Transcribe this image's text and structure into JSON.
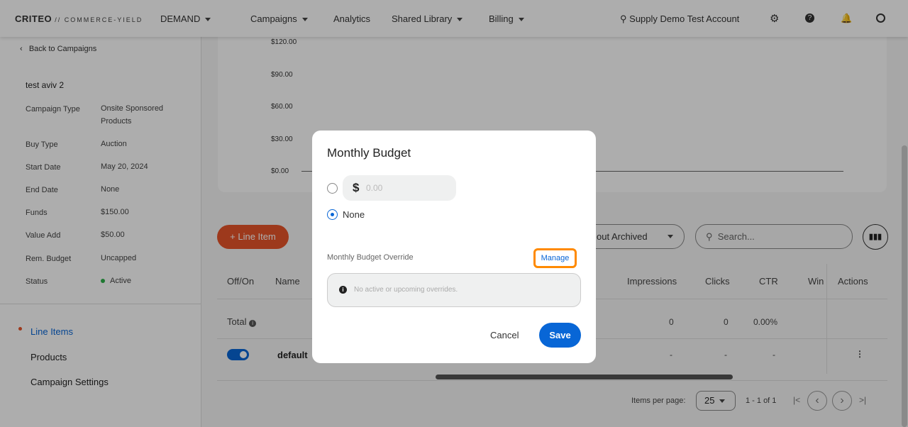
{
  "header": {
    "logo": "CRITEO",
    "logo_suffix": "// COMMERCE-YIELD",
    "demand": "DEMAND",
    "nav": [
      "Campaigns",
      "Analytics",
      "Shared Library",
      "Billing"
    ],
    "account": "Supply Demo Test Account"
  },
  "sidebar": {
    "back": "Back to Campaigns",
    "campaign_name": "test aviv 2",
    "details": [
      {
        "label": "Campaign Type",
        "value": "Onsite Sponsored Products"
      },
      {
        "label": "Buy Type",
        "value": "Auction"
      },
      {
        "label": "Start Date",
        "value": "May 20, 2024"
      },
      {
        "label": "End Date",
        "value": "None"
      },
      {
        "label": "Funds",
        "value": "$150.00"
      },
      {
        "label": "Value Add",
        "value": "$50.00"
      },
      {
        "label": "Rem. Budget",
        "value": "Uncapped"
      },
      {
        "label": "Status",
        "value": "Active"
      }
    ],
    "nav": [
      "Line Items",
      "Products",
      "Campaign Settings"
    ]
  },
  "chart": {
    "yticks": [
      "$120.00",
      "$90.00",
      "$60.00",
      "$30.00",
      "$0.00"
    ]
  },
  "toolbar": {
    "add_line_item": "+ Line Item",
    "filter": "out Archived",
    "search_placeholder": "Search..."
  },
  "table": {
    "headers": [
      "Off/On",
      "Name",
      "Impressions",
      "Clicks",
      "CTR",
      "Win",
      "Actions"
    ],
    "total": {
      "label": "Total",
      "impressions": "0",
      "clicks": "0",
      "ctr": "0.00%"
    },
    "rows": [
      {
        "name": "default",
        "enabled": true,
        "impressions": "-",
        "clicks": "-",
        "ctr": "-"
      }
    ]
  },
  "pagination": {
    "label": "Items per page:",
    "per_page": "25",
    "range": "1 - 1 of 1"
  },
  "modal": {
    "title": "Monthly Budget",
    "currency": "$",
    "amount_placeholder": "0.00",
    "none_label": "None",
    "selected": "None",
    "override_label": "Monthly Budget Override",
    "manage": "Manage",
    "info": "No active or upcoming overrides.",
    "cancel": "Cancel",
    "save": "Save"
  },
  "colors": {
    "brand": "#e8552a",
    "primary": "#0866d6",
    "highlight": "#ff8a00",
    "active": "#2db14a"
  }
}
